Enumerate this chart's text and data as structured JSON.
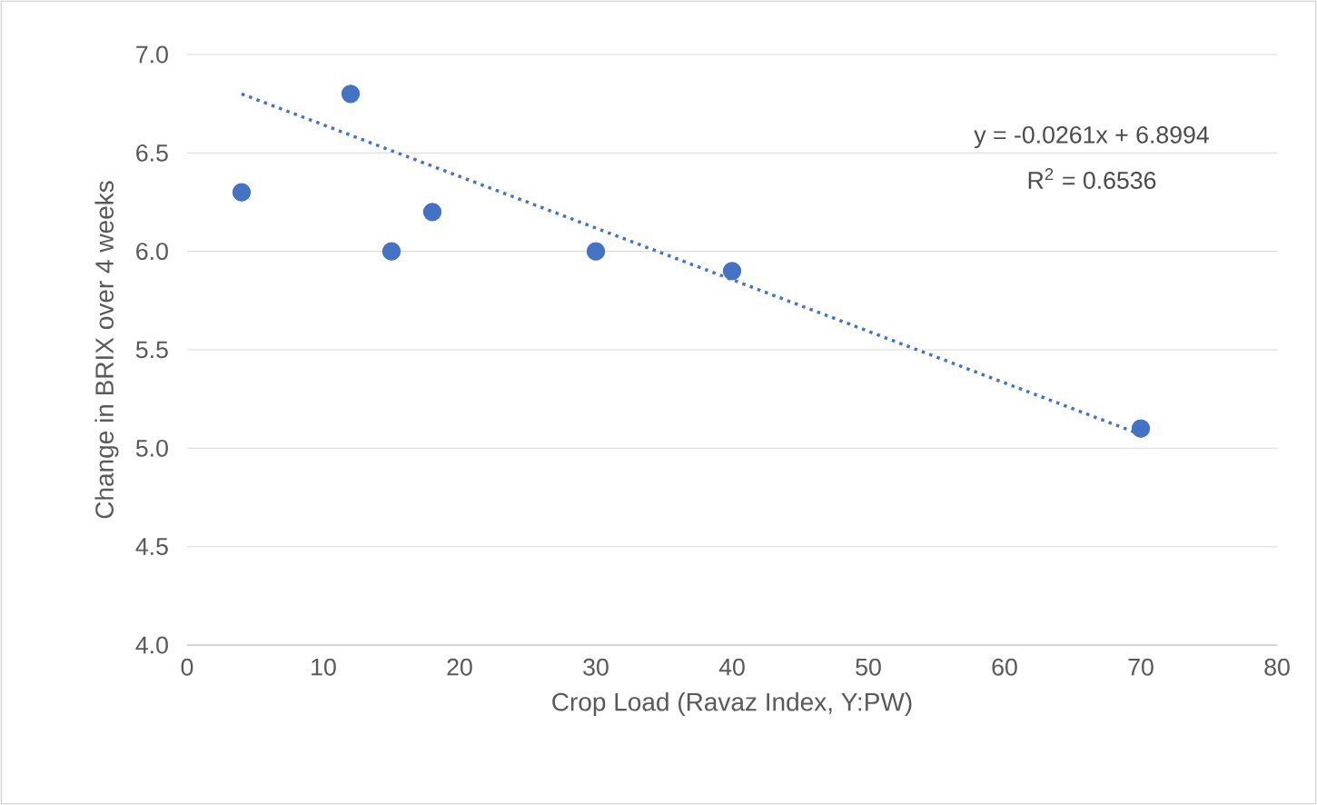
{
  "chart_data": {
    "type": "scatter",
    "xlabel": "Crop Load (Ravaz Index, Y:PW)",
    "ylabel": "Change in BRIX over 4 weeks",
    "x": [
      4,
      12,
      15,
      18,
      30,
      40,
      70
    ],
    "series": [
      {
        "color": "#4472c4",
        "marker": "circle",
        "values": [
          6.3,
          6.8,
          6.0,
          6.2,
          6.0,
          5.9,
          5.1
        ]
      },
      {
        "type": "line",
        "color": "#4472c4",
        "line_style": "dotted",
        "marker": "none",
        "x": [
          4,
          70
        ],
        "values": [
          6.8,
          5.07
        ]
      }
    ],
    "xlim": [
      0,
      80
    ],
    "xticks": [
      0,
      10,
      20,
      30,
      40,
      50,
      60,
      70,
      80
    ],
    "ylim": [
      4,
      7
    ],
    "yticks": [
      {
        "value": 4,
        "label": "4.0"
      },
      {
        "value": 4.5,
        "label": "4.5"
      },
      {
        "value": 5,
        "label": "5.0"
      },
      {
        "value": 5.5,
        "label": "5.5"
      },
      {
        "value": 6,
        "label": "6.0"
      },
      {
        "value": 6.5,
        "label": "6.5"
      },
      {
        "value": 7,
        "label": "7.0"
      }
    ],
    "grid": "y",
    "annotations": [
      "y = -0.0261x + 6.8994",
      "R$^{2}$ = 0.6536"
    ]
  }
}
